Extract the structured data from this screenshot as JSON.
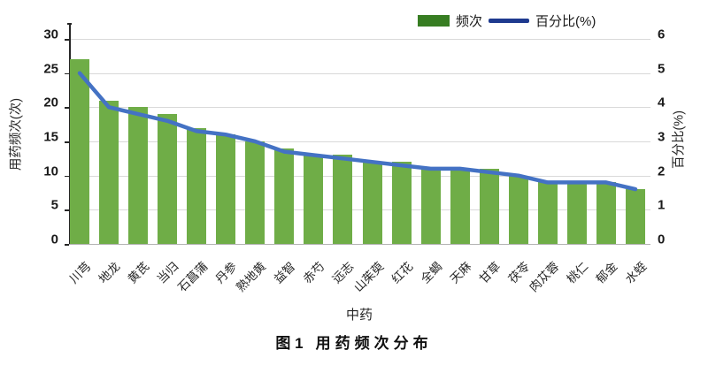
{
  "figure": {
    "caption_prefix": "图 1",
    "caption_title": "用药频次分布"
  },
  "legend": {
    "items": [
      {
        "label": "频次",
        "marker": "bar",
        "color": "#377d22"
      },
      {
        "label": "百分比(%)",
        "marker": "line",
        "color": "#1e3a8f"
      }
    ]
  },
  "chart_data": {
    "type": "bar",
    "subtype": "bar-line-combo",
    "title": "图 1 用药频次分布",
    "xlabel": "中药",
    "ylabel_left": "用药频次(次)",
    "ylabel_right": "百分比(%)",
    "categories": [
      "川芎",
      "地龙",
      "黄芪",
      "当归",
      "石菖蒲",
      "丹参",
      "熟地黄",
      "益智",
      "赤芍",
      "远志",
      "山茱萸",
      "红花",
      "全蝎",
      "天麻",
      "甘草",
      "茯苓",
      "肉苁蓉",
      "桃仁",
      "郁金",
      "水蛭"
    ],
    "series": [
      {
        "name": "频次",
        "type": "bar",
        "axis": "left",
        "color": "#6fad47",
        "values": [
          27,
          21,
          20,
          19,
          17,
          16,
          15,
          14,
          13,
          13,
          12,
          12,
          11,
          11,
          11,
          10,
          9,
          9,
          9,
          8
        ]
      },
      {
        "name": "百分比(%)",
        "type": "line",
        "axis": "right",
        "color": "#4472c4",
        "values": [
          5.0,
          4.0,
          3.8,
          3.6,
          3.3,
          3.2,
          3.0,
          2.7,
          2.6,
          2.5,
          2.4,
          2.3,
          2.2,
          2.2,
          2.1,
          2.0,
          1.8,
          1.8,
          1.8,
          1.6
        ]
      }
    ],
    "ylim_left": [
      0,
      30
    ],
    "yticks_left": [
      0,
      5,
      10,
      15,
      20,
      25,
      30
    ],
    "ylim_right": [
      0,
      6
    ],
    "yticks_right": [
      0,
      1,
      2,
      3,
      4,
      5,
      6
    ],
    "grid": "horizontal",
    "gridline_color": "#d9d9d9",
    "legend_position": "top-inside"
  }
}
